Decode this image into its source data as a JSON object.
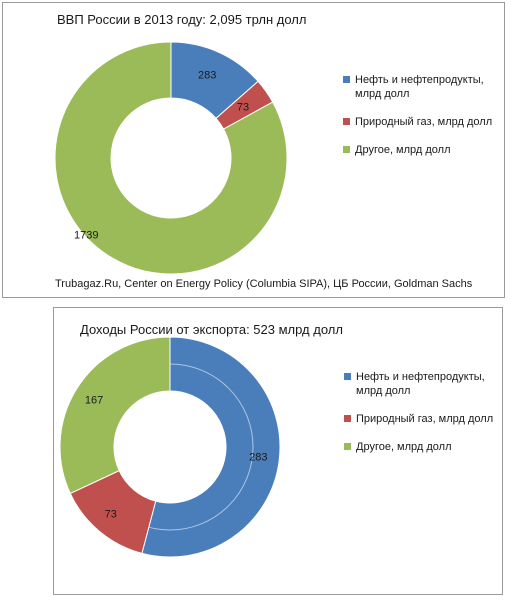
{
  "chart_data": [
    {
      "type": "pie",
      "style": "donut",
      "title": "ВВП России в 2013 году: 2,095 трлн долл",
      "source": "Trubagaz.Ru, Center on Energy Policy (Columbia SIPA), ЦБ России, Goldman Sachs",
      "legend_position": "right",
      "slices": [
        {
          "name": "Нефть и нефтепродукты, млрд долл",
          "value": 283,
          "label": "283",
          "color": "#4a7ebb"
        },
        {
          "name": "Природный газ, млрд долл",
          "value": 73,
          "label": "73",
          "color": "#c0504d"
        },
        {
          "name": "Другое, млрд долл",
          "value": 1739,
          "label": "1739",
          "color": "#9bbb59"
        }
      ]
    },
    {
      "type": "pie",
      "style": "donut",
      "title": "Доходы России от экспорта: 523 млрд долл",
      "legend_position": "right",
      "slices": [
        {
          "name": "Нефть и нефтепродукты, млрд долл",
          "value": 283,
          "label": "283",
          "color": "#4a7ebb"
        },
        {
          "name": "Природный газ, млрд долл",
          "value": 73,
          "label": "73",
          "color": "#c0504d"
        },
        {
          "name": "Другое, млрд долл",
          "value": 167,
          "label": "167",
          "color": "#9bbb59"
        }
      ]
    }
  ]
}
